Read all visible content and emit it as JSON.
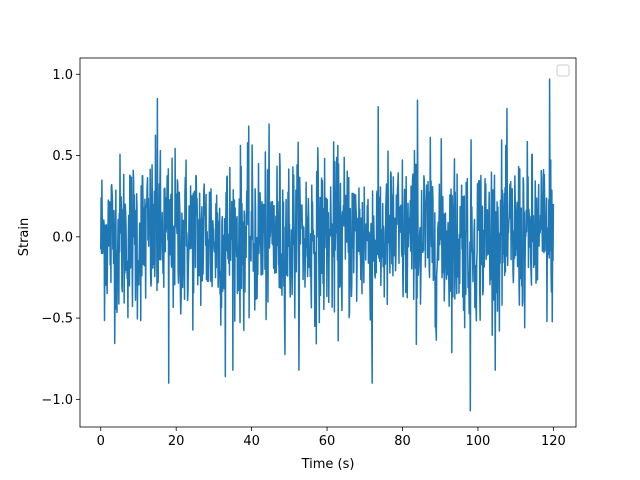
{
  "chart_data": {
    "type": "line",
    "title": "",
    "xlabel": "Time (s)",
    "ylabel": "Strain",
    "xlim": [
      -5.5,
      126
    ],
    "ylim": [
      -1.17,
      1.1
    ],
    "xticks": [
      0,
      20,
      40,
      60,
      80,
      100,
      120
    ],
    "xtick_labels": [
      "0",
      "20",
      "40",
      "60",
      "80",
      "100",
      "120"
    ],
    "yticks": [
      -1.0,
      -0.5,
      0.0,
      0.5,
      1.0
    ],
    "ytick_labels": [
      "−1.0",
      "−0.5",
      "0.0",
      "0.5",
      "1.0"
    ],
    "grid": false,
    "legend": {
      "location": "upper right",
      "entries": []
    },
    "series": [
      {
        "color": "#1f77b4",
        "x_range": [
          0,
          120
        ],
        "sample_count": 1200,
        "mean": 0.0,
        "typical_range": [
          -0.5,
          0.5
        ],
        "extremes": [
          {
            "x": 15.0,
            "y": 0.85
          },
          {
            "x": 72.0,
            "y": 1.0
          },
          {
            "x": 84.0,
            "y": 0.84
          },
          {
            "x": 119.0,
            "y": 0.97
          },
          {
            "x": 18.0,
            "y": -0.9
          },
          {
            "x": 33.0,
            "y": -0.86
          },
          {
            "x": 72.0,
            "y": -0.9
          },
          {
            "x": 98.0,
            "y": -1.07
          }
        ]
      }
    ]
  }
}
